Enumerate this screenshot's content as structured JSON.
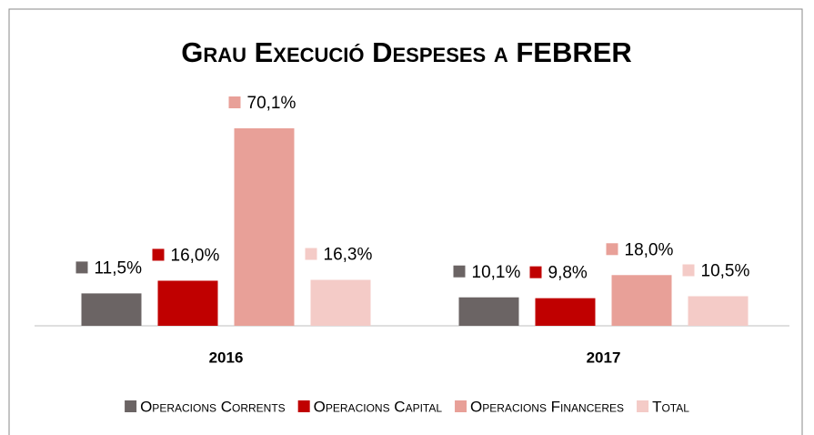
{
  "chart_data": {
    "type": "bar",
    "title": "Grau Execució Despeses a FEBRER",
    "categories": [
      "2016",
      "2017"
    ],
    "series": [
      {
        "name": "Operacions Corrents",
        "color": "#6b6464",
        "values": [
          11.5,
          10.1
        ],
        "value_labels": [
          "11,5%",
          "10,1%"
        ]
      },
      {
        "name": "Operacions Capital",
        "color": "#c00000",
        "values": [
          16.0,
          9.8
        ],
        "value_labels": [
          "16,0%",
          "9,8%"
        ]
      },
      {
        "name": "Operacions Financeres",
        "color": "#e8a098",
        "values": [
          70.1,
          18.0
        ],
        "value_labels": [
          "70,1%",
          "18,0%"
        ]
      },
      {
        "name": "Total",
        "color": "#f4cbc7",
        "values": [
          16.3,
          10.5
        ],
        "value_labels": [
          "16,3%",
          "10,5%"
        ]
      }
    ]
  }
}
